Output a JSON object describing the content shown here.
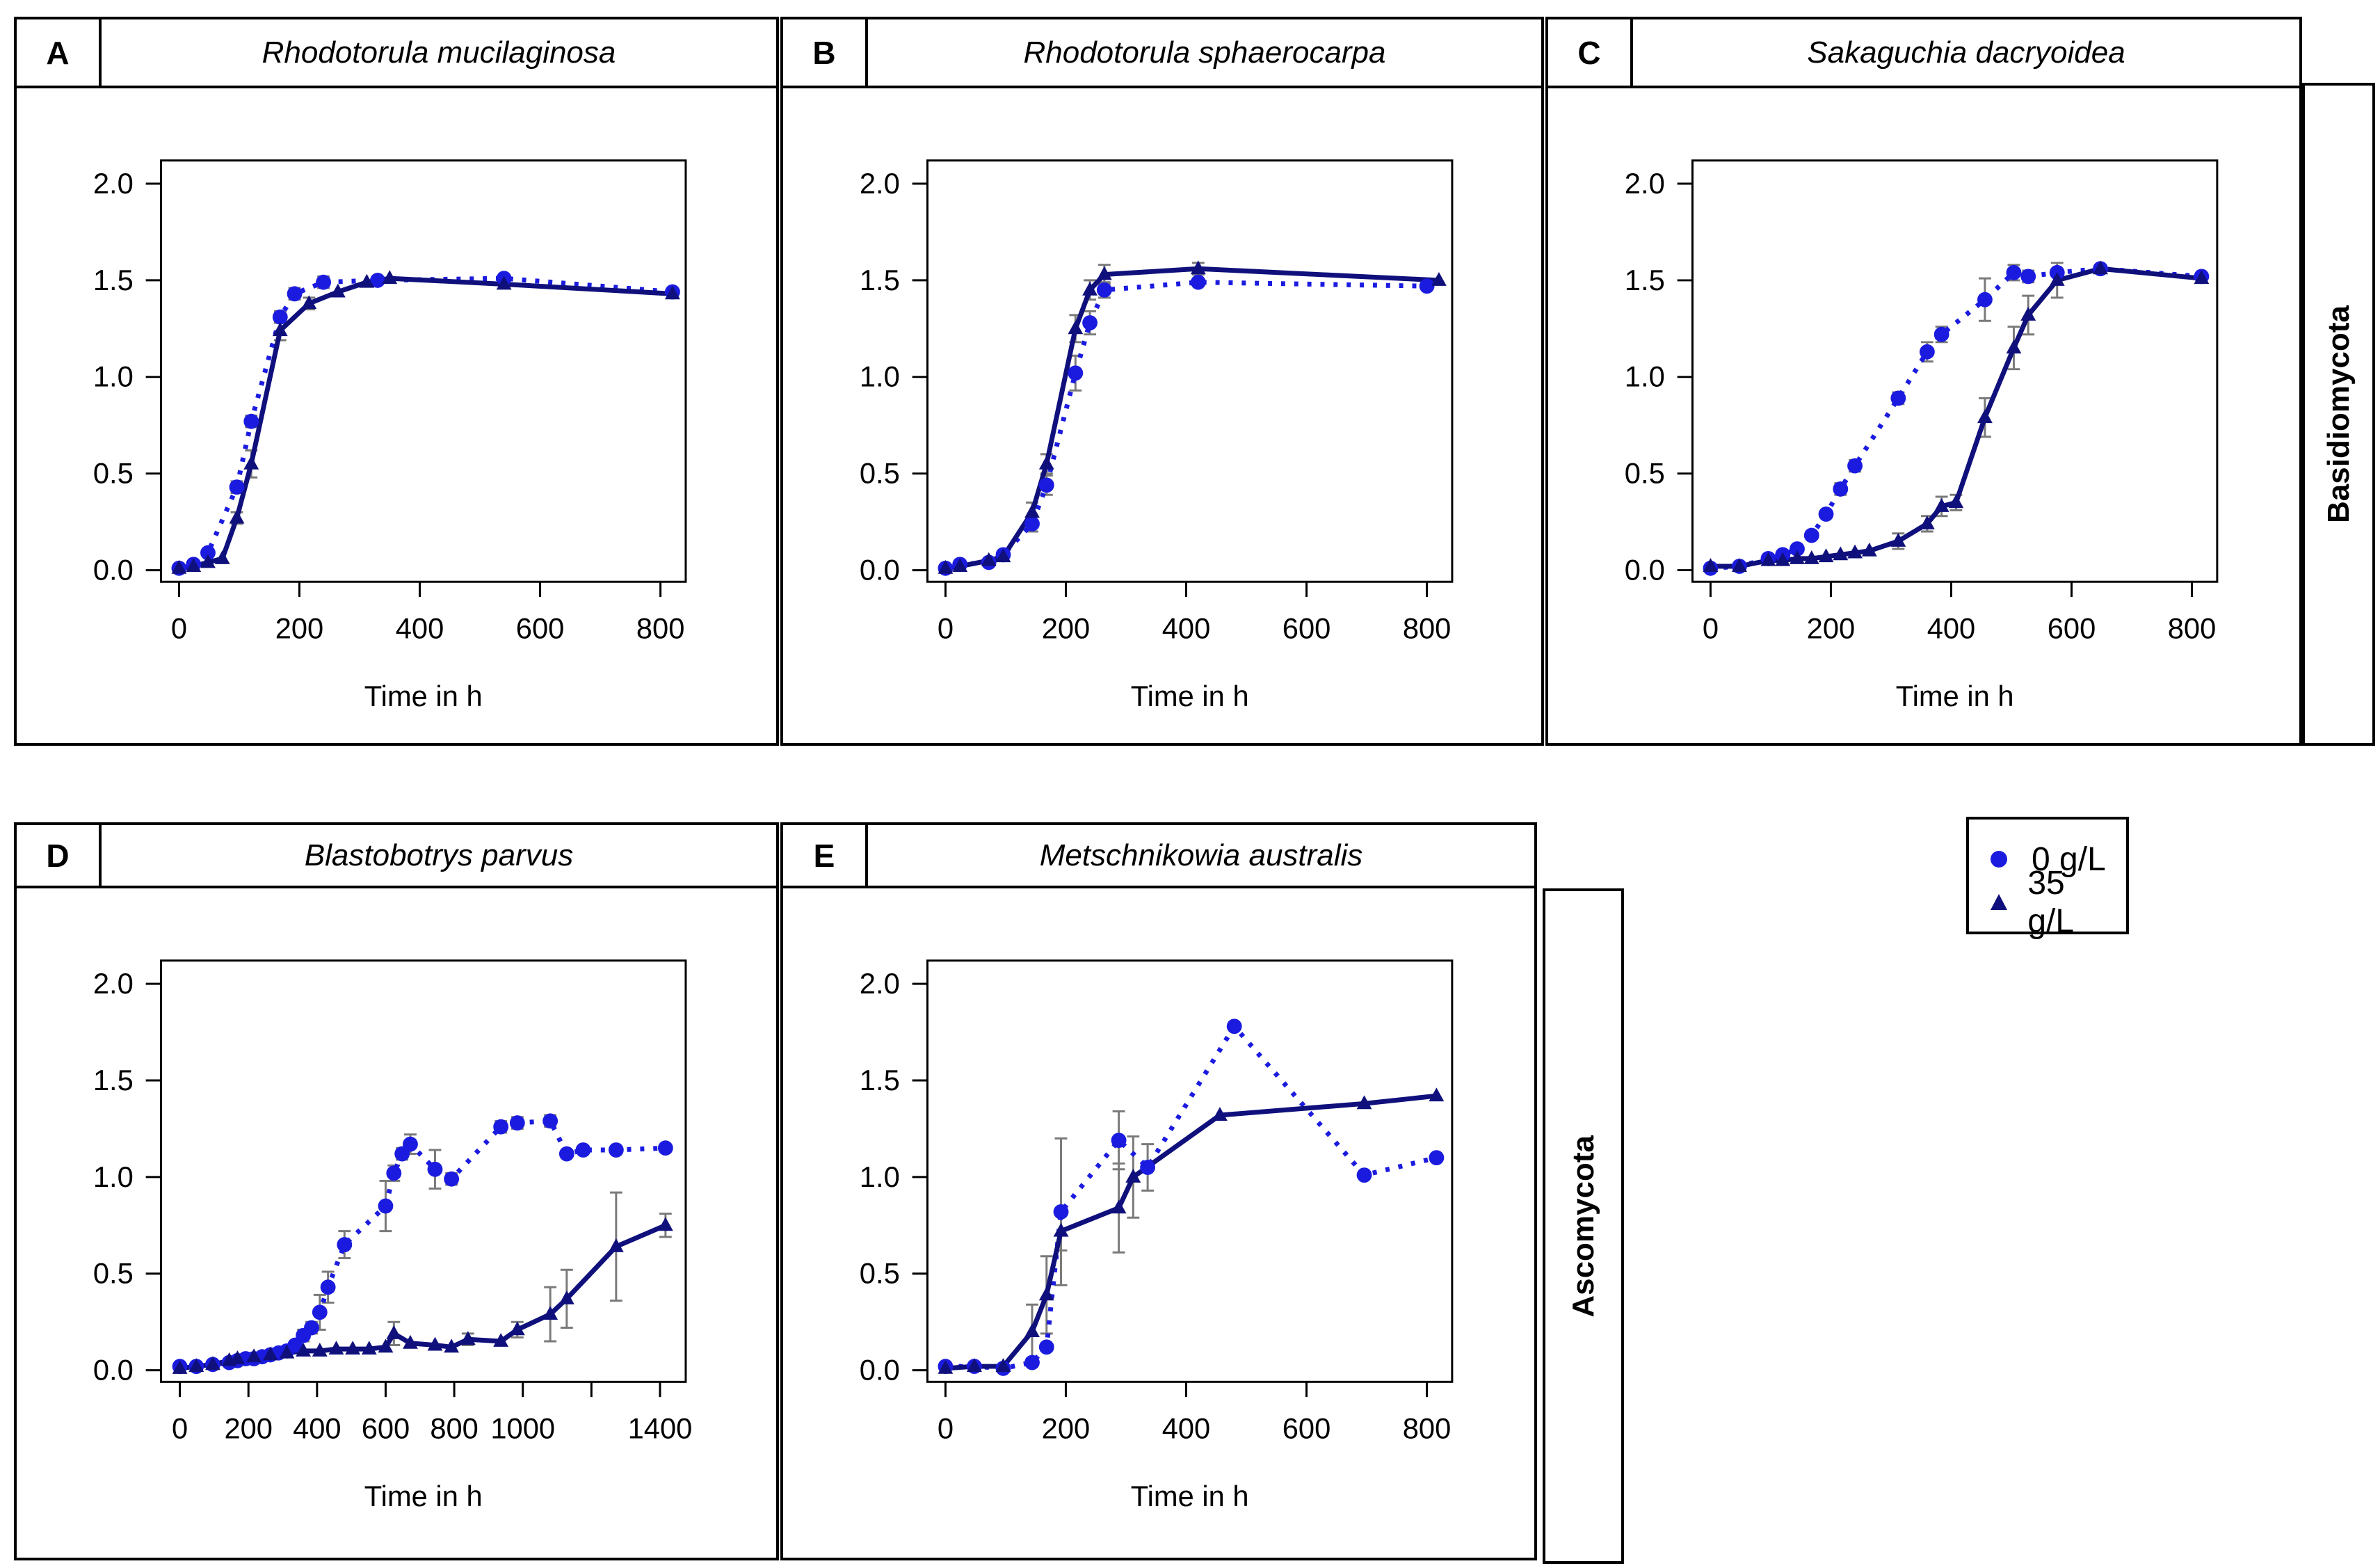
{
  "figure": {
    "xlabel": "Time in h",
    "group_labels": {
      "row1": "Basidiomycota",
      "row2": "Ascomycota"
    }
  },
  "colors": {
    "series_0gL": "#1b1be0",
    "series_35gL": "#10107c",
    "error_bar": "#7a7a7a",
    "frame": "#000000"
  },
  "panels": [
    {
      "letter": "A",
      "title": "Rhodotorula mucilaginosa"
    },
    {
      "letter": "B",
      "title": "Rhodotorula sphaerocarpa"
    },
    {
      "letter": "C",
      "title": "Sakaguchia dacryoidea"
    },
    {
      "letter": "D",
      "title": "Blastobotrys parvus"
    },
    {
      "letter": "E",
      "title": "Metschnikowia australis"
    }
  ],
  "legend": {
    "items": [
      {
        "label": "0 g/L",
        "marker": "circle"
      },
      {
        "label": "35 g/L",
        "marker": "triangle"
      }
    ]
  },
  "chart_data": [
    {
      "type": "line",
      "panel": "A",
      "title": "Rhodotorula mucilaginosa",
      "xlabel": "Time in h",
      "ylabel": "",
      "xlim": [
        -30,
        842
      ],
      "ylim": [
        -0.06,
        2.12
      ],
      "xticks": [
        0,
        200,
        400,
        600,
        800
      ],
      "xtick_labels": [
        "0",
        "200",
        "400",
        "600",
        "800"
      ],
      "yticks": [
        0.0,
        0.5,
        1.0,
        1.5,
        2.0
      ],
      "ytick_labels": [
        "0.0",
        "0.5",
        "1.0",
        "1.5",
        "2.0"
      ],
      "grid": false,
      "legend_position": "none",
      "series": [
        {
          "name": "0 g/L",
          "marker": "circle",
          "line": "dotted",
          "points": [
            [
              0,
              0.01,
              0
            ],
            [
              24,
              0.03,
              0
            ],
            [
              48,
              0.09,
              0
            ],
            [
              96,
              0.43,
              0.03
            ],
            [
              120,
              0.77,
              0.03
            ],
            [
              168,
              1.31,
              0.03
            ],
            [
              192,
              1.43,
              0.03
            ],
            [
              240,
              1.49,
              0.03
            ],
            [
              330,
              1.5,
              0.02
            ],
            [
              540,
              1.51,
              0.02
            ],
            [
              820,
              1.44,
              0.02
            ]
          ]
        },
        {
          "name": "35 g/L",
          "marker": "triangle",
          "line": "solid",
          "points": [
            [
              0,
              0.01,
              0
            ],
            [
              24,
              0.02,
              0
            ],
            [
              48,
              0.04,
              0
            ],
            [
              72,
              0.06,
              0
            ],
            [
              96,
              0.27,
              0.03
            ],
            [
              120,
              0.55,
              0.07
            ],
            [
              168,
              1.24,
              0.05
            ],
            [
              216,
              1.38,
              0.03
            ],
            [
              264,
              1.44,
              0.02
            ],
            [
              312,
              1.49,
              0.02
            ],
            [
              350,
              1.51,
              0.02
            ],
            [
              540,
              1.48,
              0.02
            ],
            [
              820,
              1.43,
              0.02
            ]
          ]
        }
      ]
    },
    {
      "type": "line",
      "panel": "B",
      "title": "Rhodotorula sphaerocarpa",
      "xlabel": "Time in h",
      "ylabel": "",
      "xlim": [
        -30,
        842
      ],
      "ylim": [
        -0.06,
        2.12
      ],
      "xticks": [
        0,
        200,
        400,
        600,
        800
      ],
      "xtick_labels": [
        "0",
        "200",
        "400",
        "600",
        "800"
      ],
      "yticks": [
        0.0,
        0.5,
        1.0,
        1.5,
        2.0
      ],
      "ytick_labels": [
        "0.0",
        "0.5",
        "1.0",
        "1.5",
        "2.0"
      ],
      "grid": false,
      "legend_position": "none",
      "series": [
        {
          "name": "0 g/L",
          "marker": "circle",
          "line": "dotted",
          "points": [
            [
              0,
              0.01,
              0
            ],
            [
              24,
              0.03,
              0
            ],
            [
              72,
              0.04,
              0
            ],
            [
              96,
              0.08,
              0
            ],
            [
              144,
              0.24,
              0.04
            ],
            [
              168,
              0.44,
              0.05
            ],
            [
              216,
              1.02,
              0.09
            ],
            [
              240,
              1.28,
              0.06
            ],
            [
              264,
              1.45,
              0.04
            ],
            [
              420,
              1.49,
              0.02
            ],
            [
              800,
              1.47,
              0.02
            ]
          ]
        },
        {
          "name": "35 g/L",
          "marker": "triangle",
          "line": "solid",
          "points": [
            [
              0,
              0.01,
              0
            ],
            [
              24,
              0.02,
              0
            ],
            [
              72,
              0.05,
              0
            ],
            [
              96,
              0.07,
              0
            ],
            [
              144,
              0.3,
              0.05
            ],
            [
              168,
              0.55,
              0.05
            ],
            [
              216,
              1.25,
              0.07
            ],
            [
              240,
              1.45,
              0.05
            ],
            [
              264,
              1.53,
              0.05
            ],
            [
              420,
              1.56,
              0.03
            ],
            [
              820,
              1.5,
              0.02
            ]
          ]
        }
      ]
    },
    {
      "type": "line",
      "panel": "C",
      "title": "Sakaguchia dacryoidea",
      "xlabel": "Time in h",
      "ylabel": "",
      "xlim": [
        -30,
        842
      ],
      "ylim": [
        -0.06,
        2.12
      ],
      "xticks": [
        0,
        200,
        400,
        600,
        800
      ],
      "xtick_labels": [
        "0",
        "200",
        "400",
        "600",
        "800"
      ],
      "yticks": [
        0.0,
        0.5,
        1.0,
        1.5,
        2.0
      ],
      "ytick_labels": [
        "0.0",
        "0.5",
        "1.0",
        "1.5",
        "2.0"
      ],
      "grid": false,
      "legend_position": "none",
      "series": [
        {
          "name": "0 g/L",
          "marker": "circle",
          "line": "dotted",
          "points": [
            [
              0,
              0.01,
              0
            ],
            [
              48,
              0.02,
              0
            ],
            [
              96,
              0.06,
              0
            ],
            [
              120,
              0.08,
              0
            ],
            [
              144,
              0.11,
              0
            ],
            [
              168,
              0.18,
              0.02
            ],
            [
              192,
              0.29,
              0.02
            ],
            [
              216,
              0.42,
              0.03
            ],
            [
              240,
              0.54,
              0.03
            ],
            [
              312,
              0.89,
              0.03
            ],
            [
              360,
              1.13,
              0.05
            ],
            [
              384,
              1.22,
              0.04
            ],
            [
              456,
              1.4,
              0.11
            ],
            [
              504,
              1.54,
              0.04
            ],
            [
              528,
              1.52,
              0.03
            ],
            [
              576,
              1.54,
              0.02
            ],
            [
              648,
              1.56,
              0.02
            ],
            [
              816,
              1.52,
              0.02
            ]
          ]
        },
        {
          "name": "35 g/L",
          "marker": "triangle",
          "line": "solid",
          "points": [
            [
              0,
              0.02,
              0
            ],
            [
              48,
              0.02,
              0
            ],
            [
              96,
              0.05,
              0
            ],
            [
              120,
              0.05,
              0
            ],
            [
              144,
              0.06,
              0
            ],
            [
              168,
              0.06,
              0
            ],
            [
              192,
              0.07,
              0
            ],
            [
              216,
              0.08,
              0
            ],
            [
              240,
              0.09,
              0
            ],
            [
              264,
              0.1,
              0
            ],
            [
              312,
              0.15,
              0.04
            ],
            [
              360,
              0.24,
              0.04
            ],
            [
              384,
              0.33,
              0.05
            ],
            [
              408,
              0.35,
              0.04
            ],
            [
              456,
              0.79,
              0.1
            ],
            [
              504,
              1.15,
              0.11
            ],
            [
              528,
              1.32,
              0.1
            ],
            [
              576,
              1.5,
              0.09
            ],
            [
              648,
              1.56,
              0.02
            ],
            [
              816,
              1.51,
              0.02
            ]
          ]
        }
      ]
    },
    {
      "type": "line",
      "panel": "D",
      "title": "Blastobotrys parvus",
      "xlabel": "Time in h",
      "ylabel": "",
      "xlim": [
        -55,
        1475
      ],
      "ylim": [
        -0.06,
        2.12
      ],
      "xticks": [
        0,
        200,
        400,
        600,
        800,
        1000,
        1200,
        1400
      ],
      "xtick_labels": [
        "0",
        "200",
        "400",
        "600",
        "800",
        "1000",
        "",
        "1400"
      ],
      "yticks": [
        0.0,
        0.5,
        1.0,
        1.5,
        2.0
      ],
      "ytick_labels": [
        "0.0",
        "0.5",
        "1.0",
        "1.5",
        "2.0"
      ],
      "grid": false,
      "legend_position": "none",
      "series": [
        {
          "name": "0 g/L",
          "marker": "circle",
          "line": "dotted",
          "points": [
            [
              0,
              0.02,
              0
            ],
            [
              48,
              0.02,
              0
            ],
            [
              96,
              0.03,
              0
            ],
            [
              144,
              0.04,
              0
            ],
            [
              168,
              0.05,
              0
            ],
            [
              192,
              0.06,
              0
            ],
            [
              216,
              0.06,
              0
            ],
            [
              240,
              0.07,
              0
            ],
            [
              264,
              0.08,
              0
            ],
            [
              288,
              0.09,
              0
            ],
            [
              312,
              0.1,
              0
            ],
            [
              336,
              0.13,
              0
            ],
            [
              360,
              0.18,
              0.03
            ],
            [
              384,
              0.22,
              0.03
            ],
            [
              408,
              0.3,
              0.09
            ],
            [
              432,
              0.43,
              0.08
            ],
            [
              480,
              0.65,
              0.07
            ],
            [
              600,
              0.85,
              0.13
            ],
            [
              624,
              1.02,
              0.04
            ],
            [
              648,
              1.12,
              0.03
            ],
            [
              672,
              1.17,
              0.05
            ],
            [
              744,
              1.04,
              0.1
            ],
            [
              792,
              0.99,
              0.03
            ],
            [
              936,
              1.26,
              0.03
            ],
            [
              984,
              1.28,
              0.03
            ],
            [
              1080,
              1.29,
              0.03
            ],
            [
              1128,
              1.12,
              0.02
            ],
            [
              1176,
              1.14,
              0.02
            ],
            [
              1272,
              1.14,
              0.02
            ],
            [
              1416,
              1.15,
              0.02
            ]
          ]
        },
        {
          "name": "35 g/L",
          "marker": "triangle",
          "line": "solid",
          "points": [
            [
              0,
              0.01,
              0
            ],
            [
              48,
              0.02,
              0
            ],
            [
              96,
              0.03,
              0
            ],
            [
              144,
              0.05,
              0
            ],
            [
              168,
              0.06,
              0
            ],
            [
              216,
              0.07,
              0
            ],
            [
              264,
              0.08,
              0
            ],
            [
              312,
              0.09,
              0
            ],
            [
              360,
              0.1,
              0
            ],
            [
              408,
              0.1,
              0
            ],
            [
              456,
              0.11,
              0
            ],
            [
              504,
              0.11,
              0
            ],
            [
              552,
              0.11,
              0
            ],
            [
              600,
              0.12,
              0
            ],
            [
              624,
              0.19,
              0.06
            ],
            [
              672,
              0.14,
              0.02
            ],
            [
              744,
              0.13,
              0.02
            ],
            [
              792,
              0.12,
              0.02
            ],
            [
              840,
              0.16,
              0.03
            ],
            [
              936,
              0.15,
              0.02
            ],
            [
              984,
              0.21,
              0.04
            ],
            [
              1080,
              0.29,
              0.14
            ],
            [
              1128,
              0.37,
              0.15
            ],
            [
              1272,
              0.64,
              0.28
            ],
            [
              1416,
              0.75,
              0.06
            ]
          ]
        }
      ]
    },
    {
      "type": "line",
      "panel": "E",
      "title": "Metschnikowia australis",
      "xlabel": "Time in h",
      "ylabel": "",
      "xlim": [
        -30,
        842
      ],
      "ylim": [
        -0.06,
        2.12
      ],
      "xticks": [
        0,
        200,
        400,
        600,
        800
      ],
      "xtick_labels": [
        "0",
        "200",
        "400",
        "600",
        "800"
      ],
      "yticks": [
        0.0,
        0.5,
        1.0,
        1.5,
        2.0
      ],
      "ytick_labels": [
        "0.0",
        "0.5",
        "1.0",
        "1.5",
        "2.0"
      ],
      "grid": false,
      "legend_position": "none",
      "series": [
        {
          "name": "0 g/L",
          "marker": "circle",
          "line": "dotted",
          "points": [
            [
              0,
              0.02,
              0
            ],
            [
              48,
              0.02,
              0
            ],
            [
              96,
              0.01,
              0
            ],
            [
              144,
              0.04,
              0
            ],
            [
              168,
              0.12,
              0
            ],
            [
              192,
              0.82,
              0.38
            ],
            [
              288,
              1.19,
              0.15
            ],
            [
              336,
              1.05,
              0.12
            ],
            [
              480,
              1.78,
              0.02
            ],
            [
              696,
              1.01,
              0.02
            ],
            [
              816,
              1.1,
              0.02
            ]
          ]
        },
        {
          "name": "35 g/L",
          "marker": "triangle",
          "line": "solid",
          "points": [
            [
              0,
              0.01,
              0
            ],
            [
              48,
              0.02,
              0
            ],
            [
              96,
              0.02,
              0
            ],
            [
              144,
              0.2,
              0.14
            ],
            [
              168,
              0.39,
              0.2
            ],
            [
              192,
              0.72,
              0.1
            ],
            [
              288,
              0.84,
              0.23
            ],
            [
              312,
              1.0,
              0.21
            ],
            [
              456,
              1.32,
              0.02
            ],
            [
              696,
              1.38,
              0.02
            ],
            [
              816,
              1.42,
              0.02
            ]
          ]
        }
      ]
    }
  ]
}
